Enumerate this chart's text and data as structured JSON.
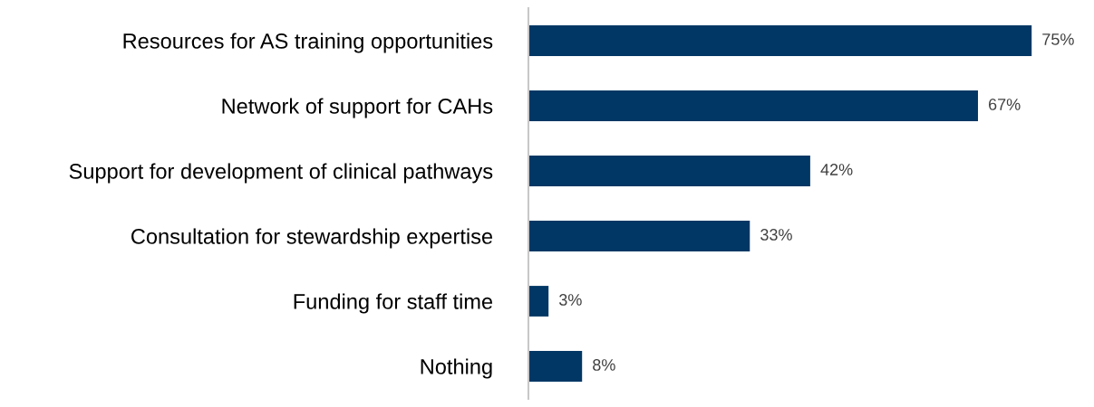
{
  "chart_data": {
    "type": "bar",
    "orientation": "horizontal",
    "categories": [
      "Resources for AS training opportunities",
      "Network of support for CAHs",
      "Support for development of clinical pathways",
      "Consultation for stewardship expertise",
      "Funding for staff time",
      "Nothing"
    ],
    "values": [
      75,
      67,
      42,
      33,
      3,
      8
    ],
    "value_labels": [
      "75%",
      "67%",
      "42%",
      "33%",
      "3%",
      "8%"
    ],
    "color": "#003764",
    "grid": false,
    "legend": false
  }
}
